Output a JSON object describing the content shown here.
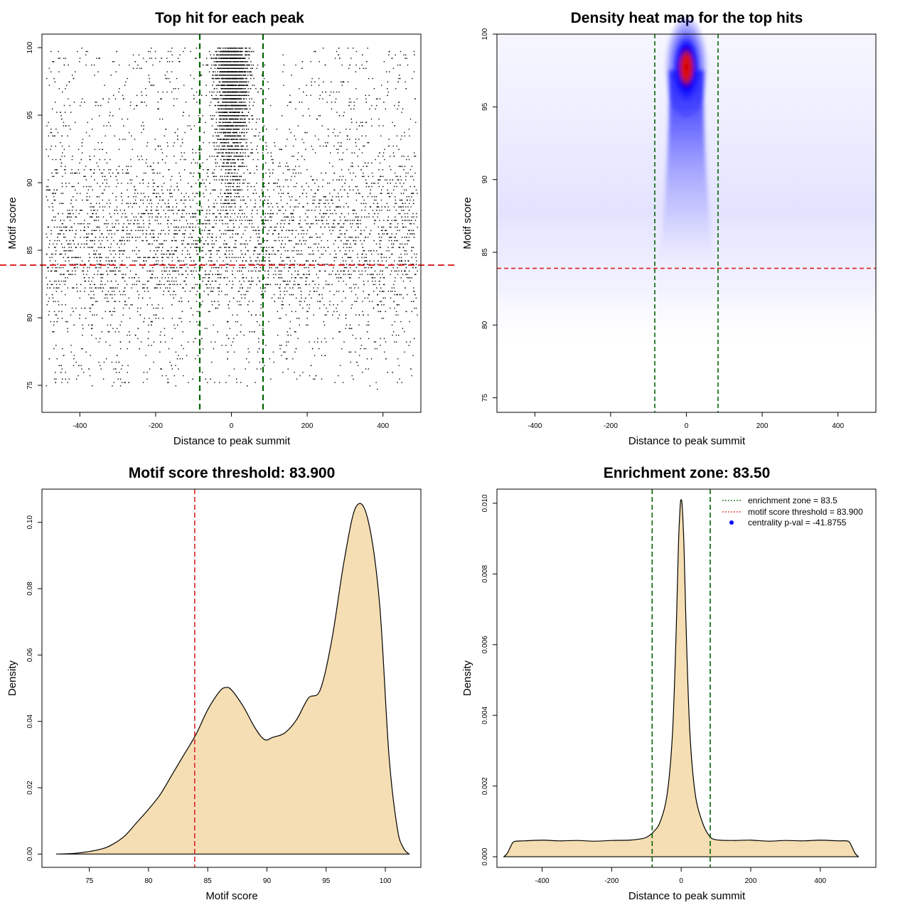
{
  "charts": [
    {
      "type": "scatter",
      "title": "Top hit for each peak",
      "xlabel": "Distance to peak summit",
      "ylabel": "Motif score",
      "xlim": [
        -500,
        500
      ],
      "ylim": [
        73,
        101
      ],
      "xticks": [
        -400,
        -200,
        0,
        200,
        400
      ],
      "yticks": [
        75,
        80,
        85,
        90,
        95,
        100
      ],
      "tick_labels_x": [
        "-400",
        "-200",
        "0",
        "200",
        "400"
      ],
      "tick_labels_y": [
        "75",
        "80",
        "85",
        "90",
        "95",
        "100"
      ],
      "threshold": 83.9,
      "enrichment_zone": [
        -83.5,
        83.5
      ],
      "threshold_color": "#dd2222",
      "zone_color": "#006400"
    },
    {
      "type": "heatmap",
      "title": "Density heat map for the top hits",
      "xlabel": "Distance to peak summit",
      "ylabel": "Motif score",
      "xlim": [
        -500,
        500
      ],
      "ylim": [
        74,
        100
      ],
      "xticks": [
        -400,
        -200,
        0,
        200,
        400
      ],
      "yticks": [
        75,
        80,
        85,
        90,
        95,
        100
      ],
      "tick_labels_x": [
        "-400",
        "-200",
        "0",
        "200",
        "400"
      ],
      "tick_labels_y": [
        "75",
        "80",
        "85",
        "90",
        "95",
        "100"
      ],
      "hotspot": {
        "x": 0,
        "y": 98
      },
      "threshold": 83.9,
      "enrichment_zone": [
        -83.5,
        83.5
      ],
      "threshold_color": "#dd2222",
      "zone_color": "#006400"
    },
    {
      "type": "area",
      "title": "Motif score threshold: 83.900",
      "xlabel": "Motif score",
      "ylabel": "Density",
      "xlim": [
        71,
        103
      ],
      "ylim": [
        -0.004,
        0.11
      ],
      "xticks": [
        75,
        80,
        85,
        90,
        95,
        100
      ],
      "yticks": [
        0.0,
        0.02,
        0.04,
        0.06,
        0.08,
        0.1
      ],
      "tick_labels_x": [
        "75",
        "80",
        "85",
        "90",
        "95",
        "100"
      ],
      "tick_labels_y": [
        "0.00",
        "0.02",
        "0.04",
        "0.06",
        "0.08",
        "0.10"
      ],
      "x": [
        72.2,
        74,
        76,
        77,
        78,
        79,
        80,
        81,
        82,
        83,
        84,
        85,
        86,
        86.5,
        87,
        88,
        89,
        89.8,
        90.5,
        91.5,
        92.5,
        93.5,
        94.5,
        95.5,
        96.5,
        97.5,
        98.5,
        99.5,
        100.3,
        101,
        101.5,
        102
      ],
      "y": [
        0.0,
        0.0003,
        0.0015,
        0.003,
        0.0055,
        0.0095,
        0.0135,
        0.018,
        0.024,
        0.03,
        0.036,
        0.0435,
        0.049,
        0.0502,
        0.0495,
        0.0445,
        0.038,
        0.0345,
        0.0352,
        0.0365,
        0.0405,
        0.047,
        0.0495,
        0.065,
        0.088,
        0.1045,
        0.1012,
        0.076,
        0.03,
        0.008,
        0.002,
        0.0
      ],
      "vline": 83.9,
      "vline_color": "#dd2222",
      "fill_color": "#f5deb3"
    },
    {
      "type": "area",
      "title": "Enrichment zone: 83.50",
      "xlabel": "Distance to peak summit",
      "ylabel": "Density",
      "xlim": [
        -530,
        560
      ],
      "ylim": [
        -0.0003,
        0.0104
      ],
      "xticks": [
        -400,
        -200,
        0,
        200,
        400
      ],
      "yticks": [
        0.0,
        0.002,
        0.004,
        0.006,
        0.008,
        0.01
      ],
      "tick_labels_x": [
        "-400",
        "-200",
        "0",
        "200",
        "400"
      ],
      "tick_labels_y": [
        "0.000",
        "0.002",
        "0.004",
        "0.006",
        "0.008",
        "0.010"
      ],
      "x": [
        -510,
        -500,
        -490,
        -480,
        -450,
        -400,
        -350,
        -300,
        -250,
        -200,
        -150,
        -120,
        -100,
        -80,
        -60,
        -40,
        -25,
        -15,
        -8,
        -3,
        0,
        3,
        8,
        15,
        25,
        40,
        60,
        80,
        100,
        150,
        200,
        250,
        300,
        350,
        400,
        450,
        480,
        490,
        500,
        510
      ],
      "y": [
        0.0,
        0.0001,
        0.0003,
        0.00043,
        0.00045,
        0.00047,
        0.00045,
        0.00046,
        0.00044,
        0.00046,
        0.00047,
        0.0005,
        0.00055,
        0.0007,
        0.001,
        0.0018,
        0.0035,
        0.0062,
        0.0088,
        0.0099,
        0.0101,
        0.0099,
        0.0088,
        0.0062,
        0.0035,
        0.0018,
        0.001,
        0.0006,
        0.00048,
        0.00046,
        0.00047,
        0.00044,
        0.00046,
        0.00045,
        0.00047,
        0.00045,
        0.00044,
        0.0003,
        0.0001,
        0.0
      ],
      "vlines": [
        -83.5,
        83.5
      ],
      "vline_color": "#006400",
      "fill_color": "#f5deb3",
      "legend": {
        "position": "top-right",
        "entries": [
          {
            "label": "enrichment zone = 83.5",
            "color": "#006400",
            "style": "dotted-line"
          },
          {
            "label": "motif score threshold = 83.900",
            "color": "#dd2222",
            "style": "dotted-line"
          },
          {
            "label": "centrality p-val = -41.8755",
            "color": "#0000ff",
            "style": "point"
          }
        ]
      }
    }
  ]
}
